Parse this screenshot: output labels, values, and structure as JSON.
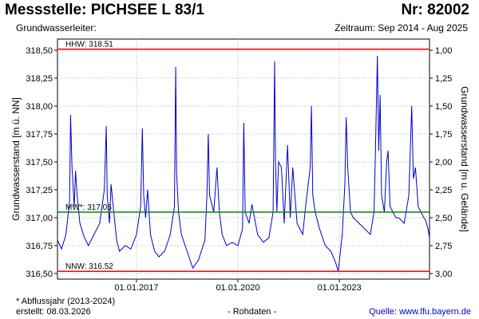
{
  "header": {
    "title": "Messstelle: PICHSEE L 83/1",
    "nr": "Nr: 82002",
    "subtitle": "Grundwasserleiter:",
    "period": "Zeitraum: Sep 2014 - Aug 2025"
  },
  "footer": {
    "note": "* Abflussjahr (2013-2024)",
    "created": "erstellt:  08.03.2026",
    "raw": "- Rohdaten -",
    "source": "Quelle:  www.lfu.bayern.de"
  },
  "colors": {
    "series": "#0000cc",
    "limit": "#ff0000",
    "mean": "#008800",
    "grid": "#b4b4b4"
  },
  "chart_data": {
    "type": "line",
    "ylabel_left": "Grundwasserstand [m ü. NN]",
    "ylabel_right": "Grundwasserstand [m u. Gelände]",
    "xlim": [
      "2014-09-01",
      "2025-08-31"
    ],
    "ylim": [
      316.45,
      318.6
    ],
    "yticks_left": [
      "318,50",
      "318,25",
      "318,00",
      "317,75",
      "317,50",
      "317,25",
      "317,00",
      "316,75",
      "316,50"
    ],
    "yticks_right": [
      "1,00",
      "1,25",
      "1,50",
      "1,75",
      "2,00",
      "2,25",
      "2,50",
      "2,75",
      "3,00"
    ],
    "yticks_left_values": [
      318.5,
      318.25,
      318.0,
      317.75,
      317.5,
      317.25,
      317.0,
      316.75,
      316.5
    ],
    "yticks_right_values": [
      1.0,
      1.25,
      1.5,
      1.75,
      2.0,
      2.25,
      2.5,
      2.75,
      3.0
    ],
    "xticks": [
      "01.01.2017",
      "01.01.2020",
      "01.01.2023"
    ],
    "xtick_dates": [
      "2017-01-01",
      "2020-01-01",
      "2023-01-01"
    ],
    "grid": true,
    "reference_lines": [
      {
        "label": "HHW: 318.51",
        "value": 318.51,
        "color": "#ff0000"
      },
      {
        "label": "MW*: 317.05",
        "value": 317.05,
        "color": "#008800"
      },
      {
        "label": "NNW: 316.52",
        "value": 316.52,
        "color": "#ff0000"
      }
    ],
    "series": [
      {
        "color": "#0000cc",
        "x": [
          "2014-09-01",
          "2014-10-15",
          "2014-12-01",
          "2015-01-10",
          "2015-01-20",
          "2015-02-05",
          "2015-03-01",
          "2015-03-15",
          "2015-04-01",
          "2015-05-01",
          "2015-06-15",
          "2015-08-01",
          "2015-10-01",
          "2015-12-01",
          "2016-01-20",
          "2016-02-10",
          "2016-02-20",
          "2016-03-15",
          "2016-04-01",
          "2016-05-01",
          "2016-06-01",
          "2016-07-01",
          "2016-09-01",
          "2016-11-01",
          "2017-01-01",
          "2017-02-15",
          "2017-03-05",
          "2017-03-20",
          "2017-04-10",
          "2017-05-01",
          "2017-06-01",
          "2017-07-15",
          "2017-09-01",
          "2017-11-01",
          "2018-01-01",
          "2018-02-15",
          "2018-03-01",
          "2018-03-10",
          "2018-04-01",
          "2018-05-01",
          "2018-07-01",
          "2018-09-01",
          "2018-11-01",
          "2019-01-10",
          "2019-02-01",
          "2019-02-15",
          "2019-03-01",
          "2019-04-15",
          "2019-05-20",
          "2019-06-15",
          "2019-07-15",
          "2019-09-01",
          "2019-11-01",
          "2020-01-01",
          "2020-02-20",
          "2020-03-05",
          "2020-03-20",
          "2020-05-01",
          "2020-06-01",
          "2020-08-01",
          "2020-10-01",
          "2020-12-01",
          "2021-01-15",
          "2021-02-01",
          "2021-02-10",
          "2021-02-25",
          "2021-03-15",
          "2021-04-15",
          "2021-05-15",
          "2021-06-20",
          "2021-07-20",
          "2021-08-15",
          "2021-10-01",
          "2021-12-01",
          "2022-01-01",
          "2022-02-20",
          "2022-03-05",
          "2022-03-20",
          "2022-04-15",
          "2022-06-01",
          "2022-08-01",
          "2022-10-01",
          "2022-11-20",
          "2022-12-20",
          "2023-02-01",
          "2023-03-01",
          "2023-03-15",
          "2023-04-01",
          "2023-05-01",
          "2023-06-01",
          "2023-08-01",
          "2023-10-01",
          "2023-12-01",
          "2024-01-10",
          "2024-01-25",
          "2024-02-15",
          "2024-03-01",
          "2024-03-15",
          "2024-04-01",
          "2024-05-01",
          "2024-05-25",
          "2024-06-10",
          "2024-07-01",
          "2024-08-01",
          "2024-09-01",
          "2024-10-01",
          "2024-12-01",
          "2025-01-20",
          "2025-02-10",
          "2025-02-20",
          "2025-03-10",
          "2025-04-01",
          "2025-05-01",
          "2025-06-01",
          "2025-07-01",
          "2025-07-20",
          "2025-08-15",
          "2025-08-31"
        ],
        "y": [
          316.8,
          316.72,
          316.85,
          317.15,
          317.92,
          317.45,
          317.1,
          317.42,
          317.2,
          316.95,
          316.83,
          316.75,
          316.85,
          316.95,
          317.25,
          317.82,
          317.2,
          316.95,
          317.3,
          317.05,
          316.8,
          316.7,
          316.75,
          316.72,
          316.85,
          317.1,
          317.8,
          317.2,
          317.0,
          317.25,
          316.85,
          316.7,
          316.65,
          316.7,
          316.85,
          317.1,
          318.35,
          317.4,
          317.05,
          316.85,
          316.7,
          316.55,
          316.62,
          316.8,
          317.2,
          317.75,
          317.2,
          317.05,
          317.45,
          317.05,
          316.85,
          316.75,
          316.78,
          316.75,
          316.9,
          317.85,
          317.05,
          316.95,
          317.12,
          316.85,
          316.78,
          316.82,
          317.05,
          318.4,
          317.5,
          317.05,
          317.5,
          317.45,
          316.95,
          317.65,
          317.0,
          317.45,
          316.95,
          316.85,
          317.1,
          317.45,
          318.0,
          317.2,
          317.05,
          316.9,
          316.75,
          316.7,
          316.6,
          316.52,
          316.85,
          317.3,
          317.9,
          317.45,
          317.05,
          317.0,
          316.95,
          316.9,
          316.85,
          317.05,
          317.6,
          318.45,
          317.6,
          318.1,
          317.2,
          317.05,
          317.5,
          317.6,
          317.1,
          317.05,
          317.0,
          317.0,
          316.95,
          317.2,
          317.75,
          318.0,
          317.35,
          317.45,
          317.1,
          317.05,
          317.0,
          316.98,
          316.9,
          316.82
        ]
      }
    ]
  }
}
